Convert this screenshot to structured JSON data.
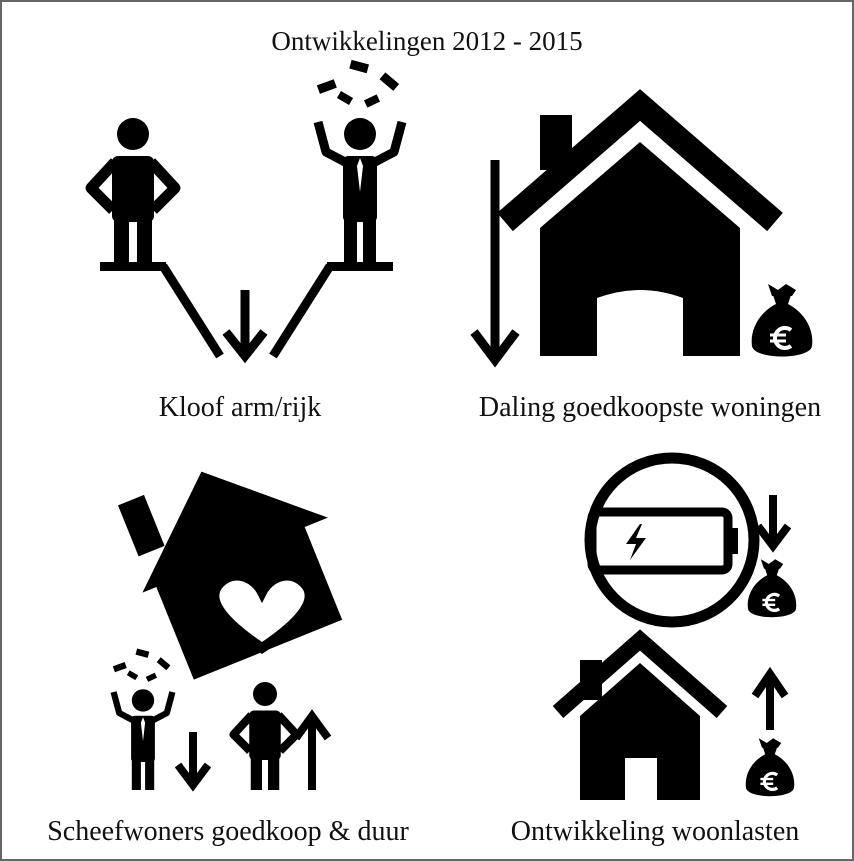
{
  "title": "Ontwikkelingen 2012 - 2015",
  "panels": [
    {
      "label": "Kloof arm/rijk"
    },
    {
      "label": "Daling goedkoopste woningen"
    },
    {
      "label": "Scheefwoners goedkoop & duur"
    },
    {
      "label": "Ontwikkeling woonlasten"
    }
  ]
}
